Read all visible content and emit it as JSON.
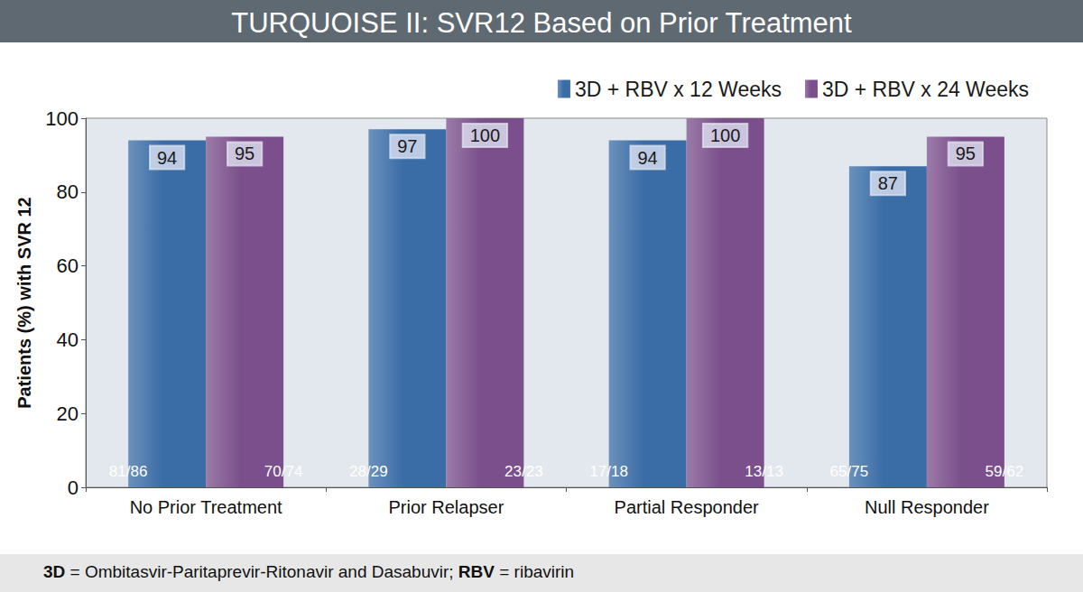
{
  "chart_data": {
    "type": "bar",
    "title": "TURQUOISE II: SVR12 Based on Prior Treatment",
    "ylabel": "Patients (%) with SVR 12",
    "categories": [
      "No Prior Treatment",
      "Prior Relapser",
      "Partial Responder",
      "Null Responder"
    ],
    "series": [
      {
        "name": "3D + RBV x 12 Weeks",
        "color": "#3a6ca6",
        "values": [
          94,
          97,
          94,
          87
        ],
        "fraction_labels": [
          "81/86",
          "28/29",
          "17/18",
          "65/75"
        ]
      },
      {
        "name": "3D + RBV x 24 Weeks",
        "color": "#7a4f8b",
        "values": [
          95,
          100,
          100,
          95
        ],
        "fraction_labels": [
          "70/74",
          "23/23",
          "13/13",
          "59/62"
        ]
      }
    ],
    "ylim": [
      0,
      100
    ],
    "yticks": [
      0,
      20,
      40,
      60,
      80,
      100
    ],
    "grid": false,
    "legend": "upper right",
    "data_labels": true,
    "annotations": [
      "3D = Ombitasvir-Paritaprevir-Ritonavir and Dasabuvir; RBV = ribavirin"
    ]
  }
}
